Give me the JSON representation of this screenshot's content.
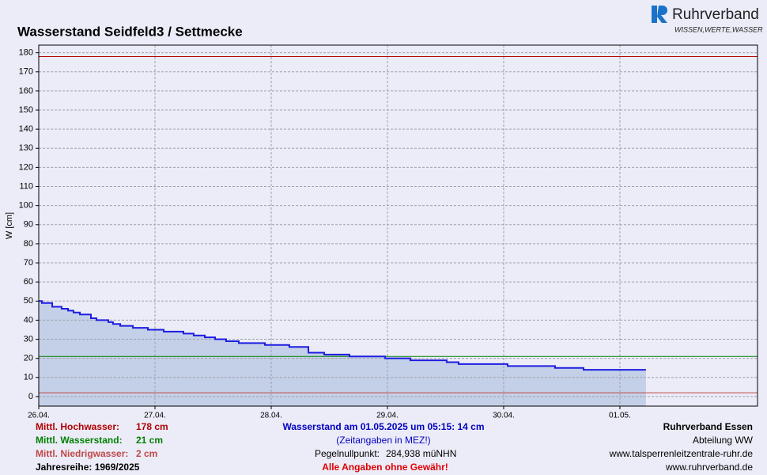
{
  "chart_data": {
    "type": "line",
    "title": "Wasserstand Seidfeld3 / Settmecke",
    "y_label": "W [cm]",
    "xlim": [
      0,
      6.184
    ],
    "xticks": [
      {
        "value": 0,
        "label": "26.04."
      },
      {
        "value": 1,
        "label": "27.04."
      },
      {
        "value": 2,
        "label": "28.04."
      },
      {
        "value": 3,
        "label": "29.04."
      },
      {
        "value": 4,
        "label": "30.04."
      },
      {
        "value": 5,
        "label": "01.05."
      }
    ],
    "ylim": [
      -5,
      184
    ],
    "yticks": [
      0,
      10,
      20,
      30,
      40,
      50,
      60,
      70,
      80,
      90,
      100,
      110,
      120,
      130,
      140,
      150,
      160,
      170,
      180
    ],
    "grid": true,
    "fill_color": "#c4d0e8",
    "series": [
      {
        "color": "#1c1ce0",
        "x": [
          0,
          0.027,
          0.027,
          0.116,
          0.116,
          0.197,
          0.197,
          0.252,
          0.252,
          0.299,
          0.299,
          0.354,
          0.354,
          0.449,
          0.449,
          0.497,
          0.497,
          0.599,
          0.599,
          0.639,
          0.639,
          0.701,
          0.701,
          0.81,
          0.81,
          0.939,
          0.939,
          1.075,
          1.075,
          1.245,
          1.245,
          1.333,
          1.333,
          1.429,
          1.429,
          1.517,
          1.517,
          1.612,
          1.612,
          1.721,
          1.721,
          1.946,
          1.946,
          2.156,
          2.156,
          2.32,
          2.32,
          2.456,
          2.456,
          2.673,
          2.673,
          2.98,
          2.98,
          3.197,
          3.197,
          3.51,
          3.51,
          3.612,
          3.612,
          4.034,
          4.034,
          4.442,
          4.442,
          4.687,
          4.687,
          5.224
        ],
        "values": [
          50,
          50,
          49,
          49,
          47,
          47,
          46,
          46,
          45,
          45,
          44,
          44,
          43,
          43,
          41,
          41,
          40,
          40,
          39,
          39,
          38,
          38,
          37,
          37,
          36,
          36,
          35,
          35,
          34,
          34,
          33,
          33,
          32,
          32,
          31,
          31,
          30,
          30,
          29,
          29,
          28,
          28,
          27,
          27,
          26,
          26,
          23,
          23,
          22,
          22,
          21,
          21,
          20,
          20,
          19,
          19,
          18,
          18,
          17,
          17,
          16,
          16,
          15,
          15,
          14,
          14
        ]
      }
    ],
    "ref_lines": [
      {
        "label": "Mittl. Hochwasser:",
        "value": 178,
        "value_label": "178 cm",
        "color": "#b00000"
      },
      {
        "label": "Mittl. Wasserstand:",
        "value": 21,
        "value_label": "21 cm",
        "color": "#008000"
      },
      {
        "label": "Mittl. Niedrigwasser:",
        "value": 2,
        "value_label": "2 cm",
        "color": "#c04848"
      }
    ]
  },
  "footer": {
    "series_range": "Jahresreihe: 1969/2025",
    "current": "Wasserstand am 01.05.2025 um 05:15: 14 cm",
    "timezone": "(Zeitangaben in MEZ!)",
    "gauge_zero_label": "Pegelnullpunkt:",
    "gauge_zero_value": "284,938 müNHN",
    "disclaimer": "Alle Angaben ohne Gewähr!",
    "org": "Ruhrverband Essen",
    "department": "Abteilung WW",
    "url1": "www.talsperrenleitzentrale-ruhr.de",
    "url2": "www.ruhrverband.de"
  },
  "logo": {
    "name": "Ruhrverband",
    "slogan": "WISSEN,WERTE,WASSER"
  }
}
